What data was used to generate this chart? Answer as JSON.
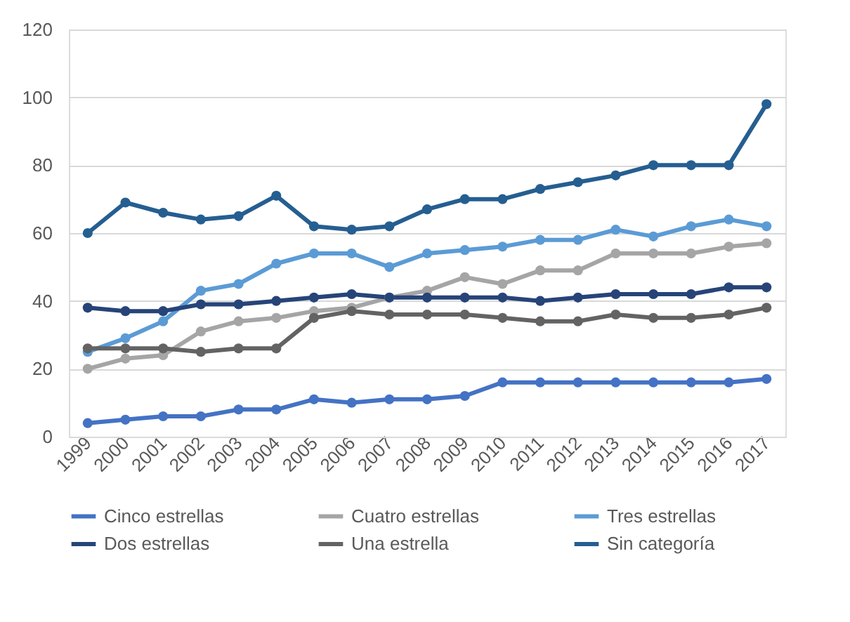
{
  "chart_data": {
    "type": "line",
    "categories": [
      "1999",
      "2000",
      "2001",
      "2002",
      "2003",
      "2004",
      "2005",
      "2006",
      "2007",
      "2008",
      "2009",
      "2010",
      "2011",
      "2012",
      "2013",
      "2014",
      "2015",
      "2016",
      "2017"
    ],
    "series": [
      {
        "name": "Cinco estrellas",
        "color": "#4472c4",
        "values": [
          4,
          5,
          6,
          6,
          8,
          8,
          11,
          10,
          11,
          11,
          12,
          16,
          16,
          16,
          16,
          16,
          16,
          16,
          17
        ]
      },
      {
        "name": "Cuatro estrellas",
        "color": "#a5a5a5",
        "values": [
          20,
          23,
          24,
          31,
          34,
          35,
          37,
          38,
          41,
          43,
          47,
          45,
          49,
          49,
          54,
          54,
          54,
          56,
          57
        ]
      },
      {
        "name": "Tres estrellas",
        "color": "#5b9bd5",
        "values": [
          25,
          29,
          34,
          43,
          45,
          51,
          54,
          54,
          50,
          54,
          55,
          56,
          58,
          58,
          61,
          59,
          62,
          64,
          62
        ]
      },
      {
        "name": "Dos estrellas",
        "color": "#264478",
        "values": [
          38,
          37,
          37,
          39,
          39,
          40,
          41,
          42,
          41,
          41,
          41,
          41,
          40,
          41,
          42,
          42,
          42,
          44,
          44
        ]
      },
      {
        "name": "Una estrella",
        "color": "#636363",
        "values": [
          26,
          26,
          26,
          25,
          26,
          26,
          35,
          37,
          36,
          36,
          36,
          35,
          34,
          34,
          36,
          35,
          35,
          36,
          38
        ]
      },
      {
        "name": "Sin categoría",
        "color": "#255e91",
        "values": [
          60,
          69,
          66,
          64,
          65,
          71,
          62,
          61,
          62,
          67,
          70,
          70,
          73,
          75,
          77,
          80,
          80,
          80,
          98
        ]
      }
    ],
    "ylim": [
      0,
      120
    ],
    "yticks": [
      0,
      20,
      40,
      60,
      80,
      100,
      120
    ],
    "grid": "y",
    "legend": "bottom",
    "marker": "circle",
    "line_style": "solid"
  }
}
